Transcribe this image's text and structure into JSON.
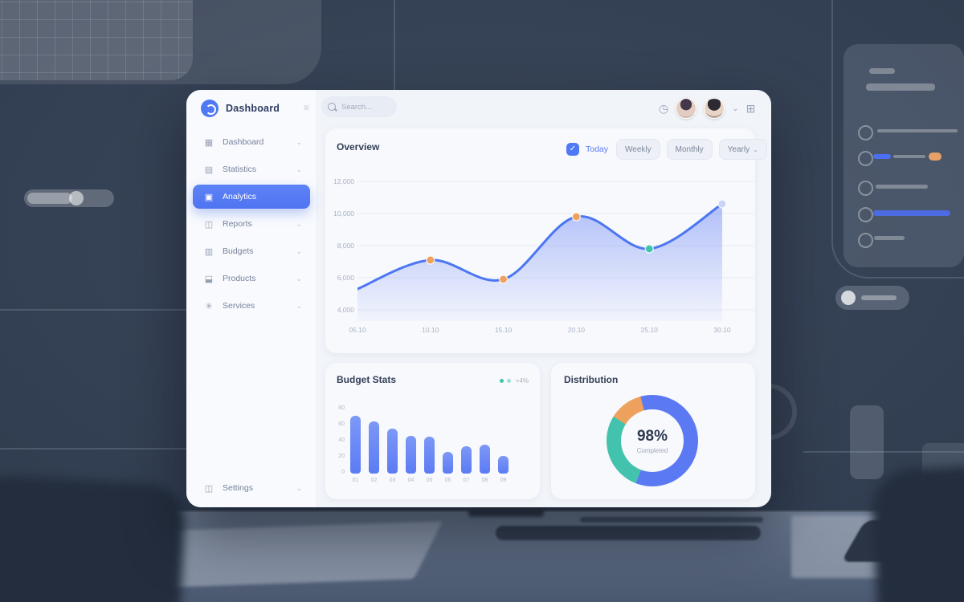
{
  "window": {
    "logo_text": "Dashboard"
  },
  "sidebar": {
    "items": [
      {
        "label": "Dashboard",
        "icon": "grid-icon",
        "active": false
      },
      {
        "label": "Statistics",
        "icon": "chart-icon",
        "active": false
      },
      {
        "label": "Analytics",
        "icon": "analytics-icon",
        "active": true
      },
      {
        "label": "Reports",
        "icon": "report-icon",
        "active": false
      },
      {
        "label": "Budgets",
        "icon": "wallet-icon",
        "active": false
      },
      {
        "label": "Products",
        "icon": "box-icon",
        "active": false
      },
      {
        "label": "Services",
        "icon": "star-icon",
        "active": false
      }
    ],
    "bottom_item": {
      "label": "Settings",
      "icon": "settings-icon"
    }
  },
  "topbar": {
    "search_placeholder": "Search..."
  },
  "overview": {
    "title": "Overview",
    "filter_checkbox_label": "Today",
    "range_buttons": [
      "Weekly",
      "Monthly",
      "Yearly"
    ]
  },
  "cards": {
    "bar": {
      "title": "Budget Stats",
      "legend_text": "+4%",
      "legend_dots": [
        "#43c3ae",
        "#9fe0d4"
      ]
    },
    "donut": {
      "title": "Distribution"
    }
  },
  "chart_data": [
    {
      "type": "area",
      "title": "Overview",
      "x": [
        "05.10",
        "10.10",
        "15.10",
        "20.10",
        "25.10",
        "30.10"
      ],
      "values": [
        5300,
        7100,
        5900,
        9800,
        7800,
        10600
      ],
      "y_ticks": [
        12000,
        10000,
        8000,
        6000,
        4000
      ],
      "ylim": [
        3300,
        12500
      ],
      "grid": true,
      "legend_position": "none",
      "line_color": "#4c76f2",
      "area_top_color": "rgba(108,134,246,0.50)",
      "point_colors": [
        null,
        "#eda15d",
        "#eda15d",
        "#eda15d",
        "#43c3ae",
        "#c9d4f6"
      ]
    },
    {
      "type": "bar",
      "title": "Budget Stats",
      "categories": [
        "01",
        "02",
        "03",
        "04",
        "05",
        "06",
        "07",
        "08",
        "09"
      ],
      "values": [
        72,
        65,
        56,
        47,
        46,
        27,
        34,
        36,
        22
      ],
      "y_ticks": [
        80,
        60,
        40,
        20,
        0
      ],
      "ylim": [
        0,
        80
      ],
      "grid": false,
      "bar_color": "#5b7bf4"
    },
    {
      "type": "donut",
      "title": "Distribution",
      "center_value": "98%",
      "center_label": "Completed",
      "start_angle_deg": 345,
      "segments": [
        {
          "color": "#5b79f2",
          "pct": 60
        },
        {
          "color": "#43c3ae",
          "pct": 28
        },
        {
          "color": "#eda15d",
          "pct": 12
        }
      ]
    }
  ]
}
